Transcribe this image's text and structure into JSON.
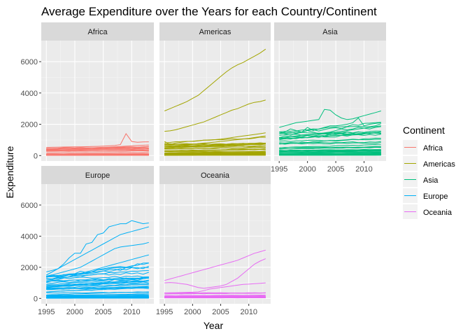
{
  "chart_data": {
    "type": "line",
    "title": "Average Expenditure over the Years for each Country/Continent",
    "xlabel": "Year",
    "ylabel": "Expenditure",
    "xlim": [
      1995,
      2013
    ],
    "ylim": [
      0,
      7000
    ],
    "x_ticks": [
      1995,
      2000,
      2005,
      2010
    ],
    "y_ticks": [
      0,
      2000,
      4000,
      6000
    ],
    "years": [
      1995,
      1996,
      1997,
      1998,
      1999,
      2000,
      2001,
      2002,
      2003,
      2004,
      2005,
      2006,
      2007,
      2008,
      2009,
      2010,
      2011,
      2012,
      2013
    ],
    "grid": true,
    "legend": {
      "title": "Continent",
      "position": "right",
      "entries": [
        "Africa",
        "Americas",
        "Asia",
        "Europe",
        "Oceania"
      ]
    },
    "colors": {
      "Africa": "#F8766D",
      "Americas": "#A3A500",
      "Asia": "#00BF7D",
      "Europe": "#00B0F6",
      "Oceania": "#E76BF3"
    },
    "facets": [
      {
        "name": "Africa",
        "highlight_series": [
          {
            "values": [
              520,
              530,
              540,
              550,
              555,
              560,
              560,
              570,
              580,
              590,
              600,
              620,
              640,
              700,
              1400,
              900,
              850,
              870,
              880
            ]
          },
          {
            "values": [
              430,
              440,
              440,
              450,
              455,
              460,
              470,
              480,
              490,
              500,
              520,
              540,
              560,
              580,
              600,
              620,
              640,
              660,
              680
            ]
          },
          {
            "values": [
              360,
              365,
              370,
              375,
              380,
              385,
              390,
              400,
              410,
              420,
              430,
              440,
              460,
              480,
              500,
              520,
              540,
              560,
              580
            ]
          }
        ]
      },
      {
        "name": "Americas",
        "highlight_series": [
          {
            "values": [
              2850,
              3000,
              3150,
              3300,
              3450,
              3650,
              3850,
              4150,
              4450,
              4750,
              5050,
              5350,
              5600,
              5800,
              5950,
              6150,
              6350,
              6550,
              6800
            ]
          },
          {
            "values": [
              1550,
              1580,
              1650,
              1750,
              1850,
              1950,
              2050,
              2150,
              2300,
              2450,
              2600,
              2750,
              2900,
              3000,
              3150,
              3300,
              3400,
              3450,
              3550
            ]
          },
          {
            "values": [
              900,
              700,
              800,
              850,
              900,
              920,
              950,
              980,
              1000,
              1020,
              1050,
              1100,
              1150,
              1200,
              1250,
              1300,
              1350,
              1400,
              1450
            ]
          },
          {
            "values": [
              650,
              620,
              640,
              660,
              690,
              720,
              760,
              800,
              830,
              860,
              900,
              940,
              980,
              1020,
              1060,
              1100,
              1150,
              1200,
              1250
            ]
          }
        ]
      },
      {
        "name": "Asia",
        "highlight_series": [
          {
            "values": [
              1800,
              1900,
              2000,
              2100,
              2150,
              2200,
              2250,
              2300,
              2950,
              2900,
              2600,
              2400,
              2300,
              2350,
              2450,
              2550,
              2650,
              2750,
              2850
            ]
          },
          {
            "values": [
              1400,
              1500,
              1700,
              1600,
              1500,
              1800,
              1600,
              1700,
              1800,
              1900,
              1900,
              1950,
              2000,
              2100,
              2400,
              1900,
              2000,
              2050,
              2100
            ]
          },
          {
            "values": [
              1500,
              1400,
              1300,
              1400,
              1500,
              1600,
              1500,
              1400,
              1450,
              1500,
              1600,
              1700,
              1650,
              1700,
              1800,
              1750,
              1700,
              1800,
              1850
            ]
          },
          {
            "values": [
              1100,
              1150,
              1200,
              1250,
              1300,
              1300,
              1350,
              1400,
              1400,
              1450,
              1500,
              1550,
              1600,
              1650,
              1700,
              1750,
              1800,
              1850,
              1900
            ]
          }
        ]
      },
      {
        "name": "Europe",
        "highlight_series": [
          {
            "values": [
              1500,
              1700,
              1900,
              2200,
              2600,
              2900,
              2900,
              3500,
              3600,
              4100,
              4200,
              4600,
              4700,
              4800,
              4800,
              5000,
              4900,
              4800,
              4850
            ]
          },
          {
            "values": [
              1700,
              1800,
              1900,
              2100,
              2300,
              2500,
              2700,
              2900,
              3100,
              3300,
              3500,
              3700,
              3900,
              4100,
              4200,
              4300,
              4400,
              4500,
              4600
            ]
          },
          {
            "values": [
              1400,
              1500,
              1600,
              1700,
              1800,
              1900,
              2000,
              2200,
              2400,
              2600,
              2800,
              3000,
              3200,
              3300,
              3350,
              3400,
              3450,
              3500,
              3600
            ]
          },
          {
            "values": [
              1100,
              1150,
              1200,
              1300,
              1400,
              1500,
              1600,
              1700,
              1800,
              1900,
              2000,
              2100,
              2200,
              2300,
              2400,
              2500,
              2600,
              2700,
              2800
            ]
          }
        ]
      },
      {
        "name": "Oceania",
        "highlight_series": [
          {
            "values": [
              1150,
              1250,
              1350,
              1450,
              1550,
              1650,
              1750,
              1850,
              1950,
              2050,
              2150,
              2250,
              2350,
              2450,
              2600,
              2750,
              2900,
              3000,
              3100
            ]
          },
          {
            "values": [
              1000,
              1020,
              1000,
              950,
              900,
              800,
              700,
              650,
              700,
              750,
              800,
              900,
              1100,
              1300,
              1600,
              1900,
              2200,
              2400,
              2550
            ]
          },
          {
            "values": [
              350,
              360,
              370,
              380,
              390,
              400,
              420,
              500,
              600,
              650,
              700,
              750,
              800,
              850,
              900,
              920,
              950,
              970,
              1000
            ]
          }
        ]
      }
    ]
  }
}
